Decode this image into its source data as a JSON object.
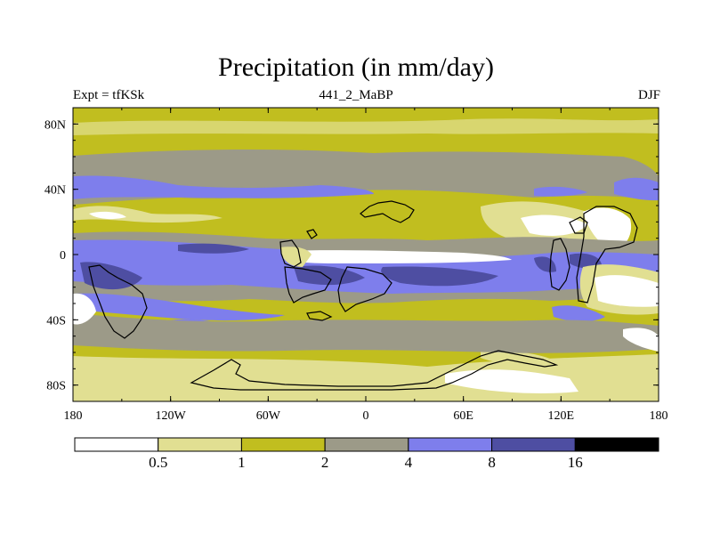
{
  "title": "Precipitation (in mm/day)",
  "left_label": "Expt = tfKSk",
  "center_label": "441_2_MaBP",
  "right_label": "DJF",
  "lat_ticks": [
    "80N",
    "40N",
    "0",
    "40S",
    "80S"
  ],
  "lon_ticks": [
    "180",
    "120W",
    "60W",
    "0",
    "60E",
    "120E",
    "180"
  ],
  "legend": {
    "levels": [
      "0.5",
      "1",
      "2",
      "4",
      "8",
      "16"
    ],
    "colors": [
      "#ffffff",
      "#e1df92",
      "#c1be1f",
      "#9c9a88",
      "#7e7eec",
      "#4e4ea2",
      "#000000"
    ]
  }
}
